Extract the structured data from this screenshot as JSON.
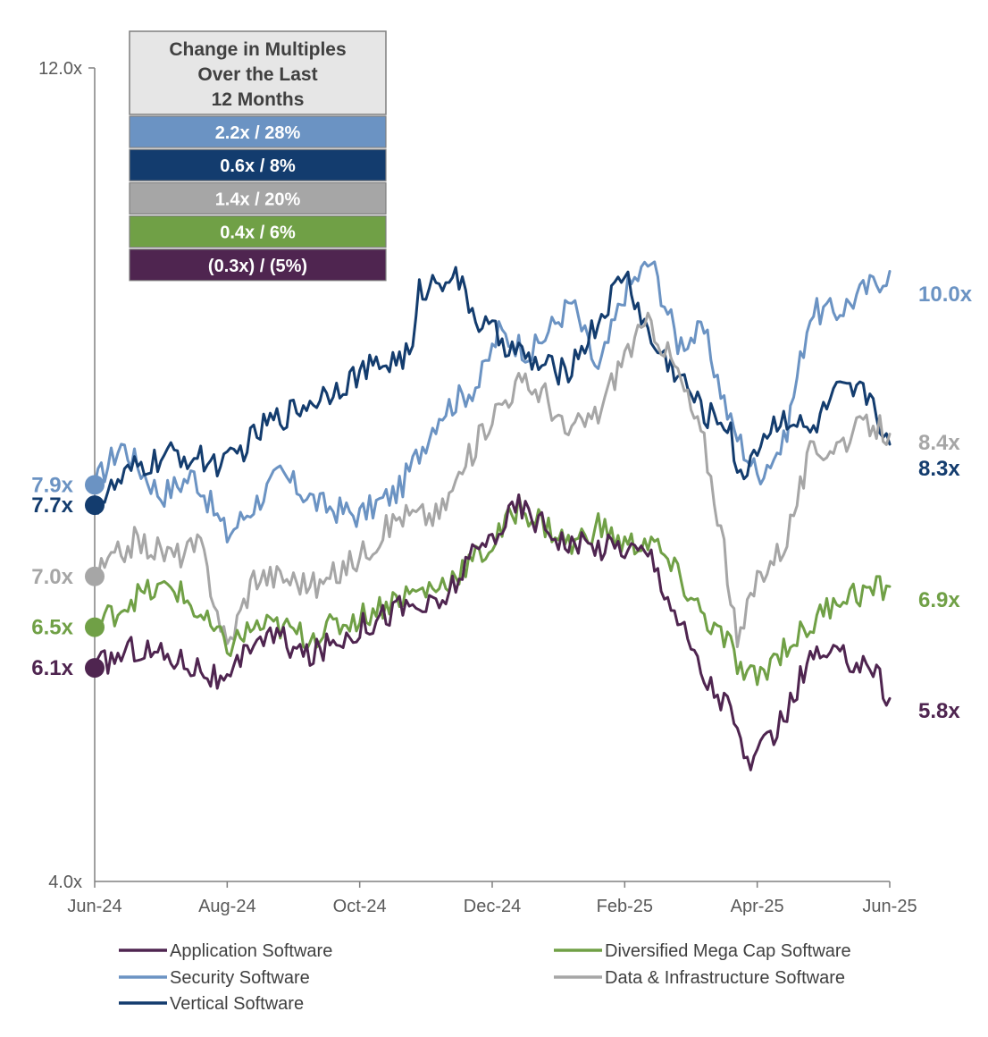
{
  "chart_data": {
    "type": "line",
    "x_labels": [
      "Jun-24",
      "Aug-24",
      "Oct-24",
      "Dec-24",
      "Feb-25",
      "Apr-25",
      "Jun-25"
    ],
    "ylim": [
      4.0,
      12.0
    ],
    "y_tick_labels": [
      "12.0x",
      "4.0x"
    ],
    "grid": false,
    "legend_position": "bottom",
    "colors": {
      "application": "#4f2550",
      "security": "#6b93c3",
      "vertical": "#133c6e",
      "data_infra": "#a6a6a6",
      "mega_cap": "#70a046"
    },
    "summary_box": {
      "title_lines": [
        "Change in Multiples",
        "Over the Last",
        "12 Months"
      ],
      "rows": [
        {
          "label": "2.2x / 28%",
          "color": "#6b93c3"
        },
        {
          "label": "0.6x / 8%",
          "color": "#133c6e"
        },
        {
          "label": "1.4x / 20%",
          "color": "#a6a6a6"
        },
        {
          "label": "0.4x / 6%",
          "color": "#70a046"
        },
        {
          "label": "(0.3x) / (5%)",
          "color": "#4f2550"
        }
      ]
    },
    "series": [
      {
        "key": "security",
        "name": "Security Software",
        "color": "#6b93c3",
        "start_label": "7.9x",
        "end_label": "10.0x",
        "points": [
          [
            0,
            7.9
          ],
          [
            0.2,
            8.3
          ],
          [
            0.5,
            7.8
          ],
          [
            0.75,
            8.0
          ],
          [
            1.0,
            7.4
          ],
          [
            1.4,
            8.0
          ],
          [
            1.7,
            7.7
          ],
          [
            2.0,
            7.6
          ],
          [
            2.3,
            7.85
          ],
          [
            2.6,
            8.6
          ],
          [
            2.9,
            8.9
          ],
          [
            3.05,
            9.4
          ],
          [
            3.3,
            9.2
          ],
          [
            3.6,
            9.7
          ],
          [
            3.8,
            9.0
          ],
          [
            4.0,
            9.8
          ],
          [
            4.2,
            10.1
          ],
          [
            4.4,
            9.3
          ],
          [
            4.6,
            9.4
          ],
          [
            4.8,
            8.5
          ],
          [
            5.0,
            8.0
          ],
          [
            5.2,
            8.3
          ],
          [
            5.4,
            9.6
          ],
          [
            5.6,
            9.6
          ],
          [
            6.0,
            10.0
          ]
        ]
      },
      {
        "key": "vertical",
        "name": "Vertical Software",
        "color": "#133c6e",
        "start_label": "7.7x",
        "end_label": "8.3x",
        "points": [
          [
            0,
            7.7
          ],
          [
            0.3,
            8.05
          ],
          [
            0.6,
            8.2
          ],
          [
            1.0,
            8.1
          ],
          [
            1.3,
            8.5
          ],
          [
            1.6,
            8.7
          ],
          [
            2.0,
            9.0
          ],
          [
            2.4,
            9.2
          ],
          [
            2.45,
            9.8
          ],
          [
            2.7,
            10.0
          ],
          [
            2.9,
            9.5
          ],
          [
            3.1,
            9.3
          ],
          [
            3.3,
            9.1
          ],
          [
            3.55,
            9.0
          ],
          [
            3.8,
            9.5
          ],
          [
            4.0,
            10.0
          ],
          [
            4.2,
            9.3
          ],
          [
            4.4,
            9.0
          ],
          [
            4.6,
            8.6
          ],
          [
            4.8,
            8.5
          ],
          [
            4.85,
            7.9
          ],
          [
            5.0,
            8.3
          ],
          [
            5.2,
            8.6
          ],
          [
            5.4,
            8.4
          ],
          [
            5.6,
            8.8
          ],
          [
            5.85,
            8.8
          ],
          [
            6.0,
            8.3
          ]
        ]
      },
      {
        "key": "data_infra",
        "name": "Data & Infrastructure Software",
        "color": "#a6a6a6",
        "start_label": "7.0x",
        "end_label": "8.4x",
        "points": [
          [
            0,
            7.0
          ],
          [
            0.3,
            7.35
          ],
          [
            0.6,
            7.2
          ],
          [
            0.8,
            7.3
          ],
          [
            1.0,
            6.3
          ],
          [
            1.2,
            7.0
          ],
          [
            1.4,
            7.0
          ],
          [
            1.7,
            6.9
          ],
          [
            2.0,
            7.2
          ],
          [
            2.3,
            7.6
          ],
          [
            2.6,
            7.6
          ],
          [
            2.8,
            8.1
          ],
          [
            3.0,
            8.6
          ],
          [
            3.2,
            8.9
          ],
          [
            3.4,
            8.8
          ],
          [
            3.55,
            8.4
          ],
          [
            3.8,
            8.6
          ],
          [
            4.0,
            9.2
          ],
          [
            4.2,
            9.5
          ],
          [
            4.4,
            9.0
          ],
          [
            4.6,
            8.3
          ],
          [
            4.75,
            7.3
          ],
          [
            4.85,
            6.3
          ],
          [
            5.0,
            7.0
          ],
          [
            5.2,
            7.3
          ],
          [
            5.4,
            8.2
          ],
          [
            5.6,
            8.3
          ],
          [
            5.85,
            8.5
          ],
          [
            6.0,
            8.4
          ]
        ]
      },
      {
        "key": "mega_cap",
        "name": "Diversified Mega Cap Software",
        "color": "#70a046",
        "start_label": "6.5x",
        "end_label": "6.9x",
        "points": [
          [
            0,
            6.5
          ],
          [
            0.3,
            6.8
          ],
          [
            0.6,
            6.9
          ],
          [
            0.8,
            6.6
          ],
          [
            1.0,
            6.3
          ],
          [
            1.2,
            6.5
          ],
          [
            1.4,
            6.5
          ],
          [
            1.6,
            6.4
          ],
          [
            2.0,
            6.6
          ],
          [
            2.3,
            6.8
          ],
          [
            2.6,
            6.9
          ],
          [
            2.8,
            7.1
          ],
          [
            3.0,
            7.3
          ],
          [
            3.2,
            7.7
          ],
          [
            3.4,
            7.5
          ],
          [
            3.6,
            7.3
          ],
          [
            3.8,
            7.5
          ],
          [
            4.0,
            7.3
          ],
          [
            4.2,
            7.35
          ],
          [
            4.4,
            7.0
          ],
          [
            4.6,
            6.6
          ],
          [
            4.8,
            6.3
          ],
          [
            4.9,
            6.0
          ],
          [
            5.0,
            6.0
          ],
          [
            5.2,
            6.3
          ],
          [
            5.4,
            6.5
          ],
          [
            5.6,
            6.8
          ],
          [
            5.85,
            6.85
          ],
          [
            6.0,
            6.9
          ]
        ]
      },
      {
        "key": "application",
        "name": "Application Software",
        "color": "#4f2550",
        "start_label": "6.1x",
        "end_label": "5.8x",
        "points": [
          [
            0,
            6.1
          ],
          [
            0.3,
            6.3
          ],
          [
            0.6,
            6.2
          ],
          [
            0.8,
            6.1
          ],
          [
            1.0,
            5.9
          ],
          [
            1.2,
            6.4
          ],
          [
            1.4,
            6.4
          ],
          [
            1.6,
            6.2
          ],
          [
            2.0,
            6.5
          ],
          [
            2.3,
            6.7
          ],
          [
            2.6,
            6.7
          ],
          [
            2.8,
            7.1
          ],
          [
            3.0,
            7.4
          ],
          [
            3.2,
            7.7
          ],
          [
            3.4,
            7.5
          ],
          [
            3.6,
            7.3
          ],
          [
            3.8,
            7.3
          ],
          [
            4.0,
            7.3
          ],
          [
            4.2,
            7.2
          ],
          [
            4.4,
            6.6
          ],
          [
            4.6,
            6.0
          ],
          [
            4.8,
            5.7
          ],
          [
            4.9,
            5.2
          ],
          [
            5.0,
            5.2
          ],
          [
            5.2,
            5.6
          ],
          [
            5.4,
            6.2
          ],
          [
            5.6,
            6.2
          ],
          [
            5.85,
            6.15
          ],
          [
            6.0,
            5.8
          ]
        ]
      }
    ],
    "legend": [
      {
        "key": "application",
        "label": "Application Software"
      },
      {
        "key": "mega_cap",
        "label": "Diversified Mega Cap Software"
      },
      {
        "key": "security",
        "label": "Security Software"
      },
      {
        "key": "data_infra",
        "label": "Data & Infrastructure Software"
      },
      {
        "key": "vertical",
        "label": "Vertical Software"
      }
    ]
  }
}
